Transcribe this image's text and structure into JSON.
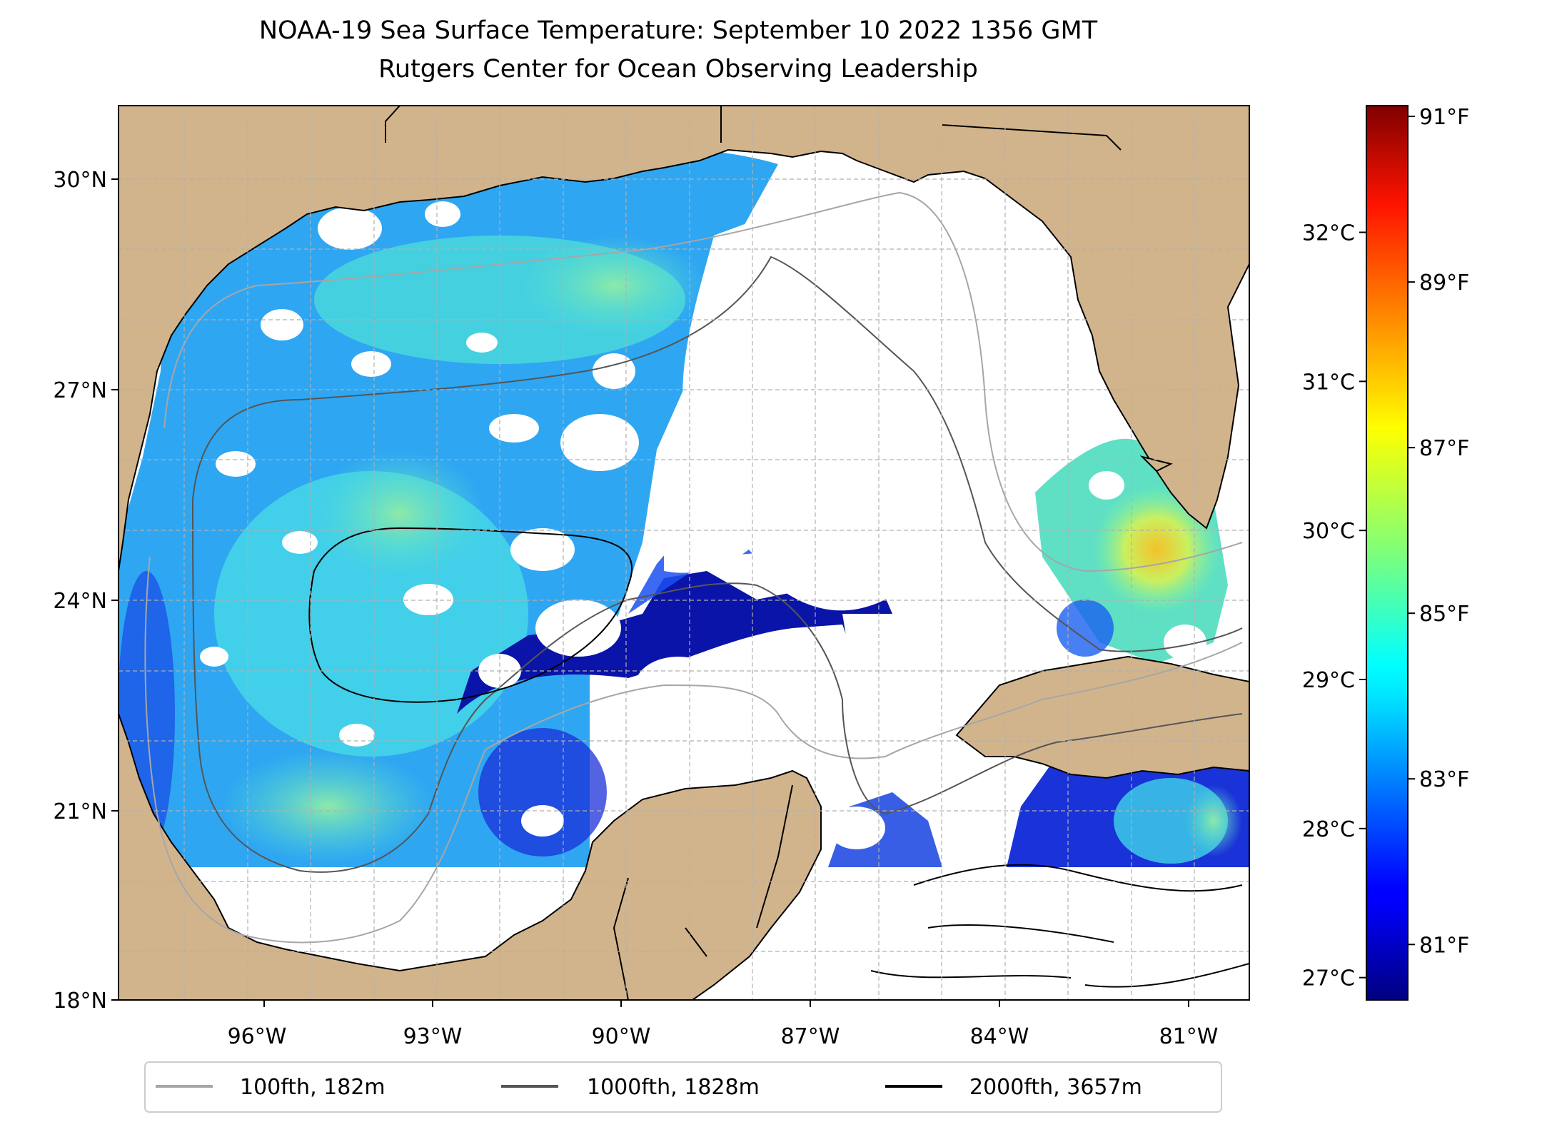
{
  "title": {
    "line1": "NOAA-19 Sea Surface Temperature: September 10 2022 1356 GMT",
    "line2": "Rutgers Center for Ocean Observing Leadership"
  },
  "map": {
    "lat_ticks": [
      "30°N",
      "27°N",
      "24°N",
      "21°N",
      "18°N"
    ],
    "lon_ticks": [
      "96°W",
      "93°W",
      "90°W",
      "87°W",
      "84°W",
      "81°W"
    ],
    "lat_range": [
      18,
      31
    ],
    "lon_range": [
      -98.3,
      -80.4
    ]
  },
  "colorbar": {
    "celsius_ticks": [
      "32°C",
      "31°C",
      "30°C",
      "29°C",
      "28°C",
      "27°C"
    ],
    "fahrenheit_ticks": [
      "91°F",
      "89°F",
      "87°F",
      "85°F",
      "83°F",
      "81°F"
    ],
    "celsius_range": [
      26.85,
      32.85
    ]
  },
  "legend": [
    {
      "label": "100fth, 182m",
      "color": "#a6a6a6"
    },
    {
      "label": "1000fth, 1828m",
      "color": "#555555"
    },
    {
      "label": "2000fth, 3657m",
      "color": "#000000"
    }
  ],
  "colors": {
    "land": "#d2b48c",
    "ocean_nodata": "#ffffff",
    "grid": "#b0b0b0"
  }
}
